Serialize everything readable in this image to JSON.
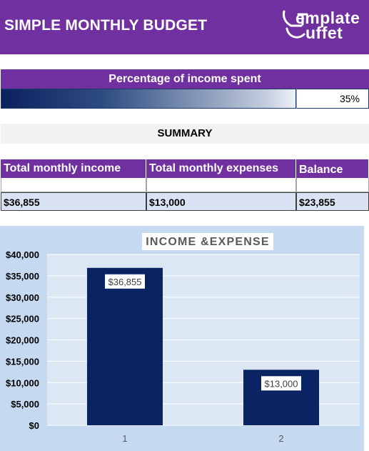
{
  "header": {
    "title": "SIMPLE MONTHLY BUDGET",
    "logo_line1": "emplate",
    "logo_line2": "uffet",
    "logo_text": "TemplateBuffet"
  },
  "spent": {
    "heading": "Percentage of income spent",
    "percent": 0.35,
    "percent_label": "35%"
  },
  "summary": {
    "heading": "SUMMARY",
    "columns": [
      "Total monthly income",
      "Total monthly expenses",
      "Balance"
    ],
    "values": [
      "$36,855",
      "$13,000",
      "$23,855"
    ]
  },
  "colors": {
    "header_purple": "#7030a0",
    "table_row": "#dae3f3",
    "chart_bg": "#c5daf0",
    "bar": "#0a2463"
  },
  "chart_data": {
    "type": "bar",
    "title": "INCOME &EXPENSE",
    "categories": [
      "1",
      "2"
    ],
    "values": [
      36855,
      13000
    ],
    "data_labels": [
      "$36,855",
      "$13,000"
    ],
    "ylim": [
      0,
      40000
    ],
    "yticks": [
      0,
      5000,
      10000,
      15000,
      20000,
      25000,
      30000,
      35000,
      40000
    ],
    "ytick_labels": [
      "$0",
      "$5,000",
      "$10,000",
      "$15,000",
      "$20,000",
      "$25,000",
      "$30,000",
      "$35,000",
      "$40,000"
    ],
    "grid": true,
    "legend": "none"
  }
}
